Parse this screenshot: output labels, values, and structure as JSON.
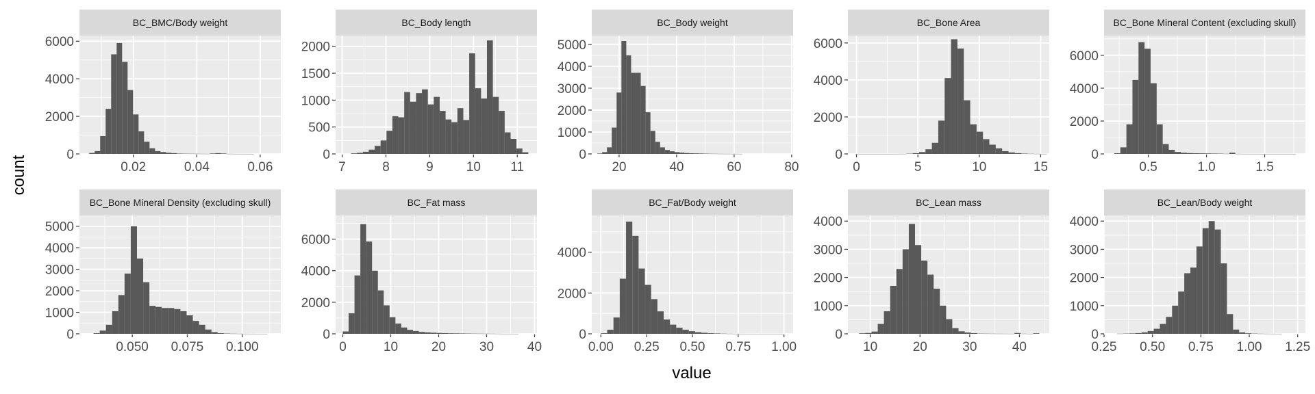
{
  "xlabel": "value",
  "ylabel": "count",
  "colors": {
    "panel_bg": "#ebebeb",
    "grid": "#ffffff",
    "strip_bg": "#d9d9d9",
    "bar": "#595959"
  },
  "chart_data": [
    {
      "type": "bar",
      "title": "BC_BMC/Body weight",
      "xlim": [
        0.003,
        0.0665
      ],
      "ylim": [
        0,
        6300
      ],
      "xticks": [
        0.02,
        0.04,
        0.06
      ],
      "xtick_labels": [
        "0.02",
        "0.04",
        "0.06"
      ],
      "yticks": [
        0,
        2000,
        4000,
        6000
      ],
      "ytick_labels": [
        "0",
        "2000",
        "4000",
        "6000"
      ],
      "bin_width": 0.00173,
      "bins_x": [
        0.00694,
        0.00867,
        0.0104,
        0.01213,
        0.01386,
        0.01559,
        0.01732,
        0.01905,
        0.02078,
        0.02251,
        0.02424,
        0.02597,
        0.0277,
        0.02943,
        0.03116,
        0.03289,
        0.03462,
        0.03635,
        0.03808,
        0.03981,
        0.04154,
        0.04327,
        0.045,
        0.04673,
        0.04846,
        0.05019,
        0.05192,
        0.05365,
        0.05538,
        0.05711
      ],
      "counts": [
        50,
        150,
        950,
        2400,
        5300,
        5900,
        4900,
        3400,
        2100,
        1200,
        650,
        300,
        150,
        100,
        60,
        40,
        20,
        15,
        12,
        10,
        8,
        6,
        25,
        40,
        25,
        5,
        3,
        2,
        2,
        1
      ]
    },
    {
      "type": "bar",
      "title": "BC_Body length",
      "xlim": [
        6.85,
        11.45
      ],
      "ylim": [
        0,
        2200
      ],
      "xticks": [
        7,
        8,
        9,
        10,
        11
      ],
      "xtick_labels": [
        "7",
        "8",
        "9",
        "10",
        "11"
      ],
      "yticks": [
        0,
        500,
        1000,
        1500,
        2000
      ],
      "ytick_labels": [
        "0",
        "500",
        "1000",
        "1500",
        "2000"
      ],
      "bin_width": 0.135,
      "bins_x": [
        7.27,
        7.405,
        7.54,
        7.675,
        7.81,
        7.945,
        8.08,
        8.215,
        8.35,
        8.485,
        8.62,
        8.755,
        8.89,
        9.025,
        9.16,
        9.295,
        9.43,
        9.565,
        9.7,
        9.835,
        9.97,
        10.105,
        10.24,
        10.375,
        10.51,
        10.645,
        10.78,
        10.915,
        11.05,
        11.185
      ],
      "counts": [
        10,
        20,
        40,
        80,
        150,
        250,
        430,
        700,
        680,
        1150,
        970,
        1130,
        1200,
        920,
        1060,
        800,
        640,
        590,
        850,
        630,
        1870,
        1220,
        1030,
        2110,
        1060,
        800,
        400,
        280,
        100,
        30
      ]
    },
    {
      "type": "bar",
      "title": "BC_Body weight",
      "xlim": [
        10.5,
        80.5
      ],
      "ylim": [
        0,
        5400
      ],
      "xticks": [
        20,
        40,
        60,
        80
      ],
      "xtick_labels": [
        "20",
        "40",
        "60",
        "80"
      ],
      "yticks": [
        0,
        1000,
        2000,
        3000,
        4000,
        5000
      ],
      "ytick_labels": [
        "0",
        "1000",
        "2000",
        "3000",
        "4000",
        "5000"
      ],
      "bin_width": 1.68,
      "bins_x": [
        13.26,
        14.94,
        16.62,
        18.3,
        19.98,
        21.66,
        23.34,
        25.02,
        26.7,
        28.38,
        30.06,
        31.74,
        33.42,
        35.1,
        36.78,
        38.46,
        40.14,
        41.82,
        43.5,
        45.18,
        46.86,
        48.54,
        50.22,
        51.9,
        53.58,
        55.26,
        56.94,
        58.62,
        60.3,
        61.98
      ],
      "counts": [
        20,
        80,
        300,
        1200,
        2800,
        5150,
        4500,
        3700,
        3700,
        3100,
        1900,
        1050,
        550,
        300,
        180,
        120,
        80,
        60,
        40,
        30,
        25,
        20,
        15,
        10,
        8,
        6,
        5,
        4,
        3,
        2
      ]
    },
    {
      "type": "bar",
      "title": "BC_Bone Area",
      "xlim": [
        -0.7,
        15.7
      ],
      "ylim": [
        0,
        6400
      ],
      "xticks": [
        0,
        5,
        10,
        15
      ],
      "xtick_labels": [
        "0",
        "5",
        "10",
        "15"
      ],
      "yticks": [
        0,
        2000,
        4000,
        6000
      ],
      "ytick_labels": [
        "0",
        "2000",
        "4000",
        "6000"
      ],
      "bin_width": 0.52,
      "bins_x": [
        0.16,
        0.68,
        1.2,
        1.72,
        2.24,
        2.76,
        3.28,
        3.8,
        4.32,
        4.84,
        5.36,
        5.88,
        6.4,
        6.92,
        7.44,
        7.96,
        8.48,
        9.0,
        9.52,
        10.04,
        10.56,
        11.08,
        11.6,
        12.12,
        12.64,
        13.16,
        13.68,
        14.2,
        14.72,
        15.24
      ],
      "counts": [
        2,
        1,
        1,
        1,
        1,
        1,
        2,
        3,
        15,
        40,
        100,
        250,
        600,
        1800,
        4100,
        6200,
        5700,
        2900,
        1600,
        1200,
        800,
        500,
        300,
        150,
        80,
        40,
        20,
        10,
        5,
        2
      ]
    },
    {
      "type": "bar",
      "title": "BC_Bone Mineral Content (excluding skull)",
      "xlim": [
        0.12,
        1.85
      ],
      "ylim": [
        0,
        7200
      ],
      "xticks": [
        0.5,
        1.0,
        1.5
      ],
      "xtick_labels": [
        "0.5",
        "1.0",
        "1.5"
      ],
      "yticks": [
        0,
        2000,
        4000,
        6000
      ],
      "ytick_labels": [
        "0",
        "2000",
        "4000",
        "6000"
      ],
      "bin_width": 0.052,
      "bins_x": [
        0.234,
        0.286,
        0.338,
        0.39,
        0.442,
        0.494,
        0.546,
        0.598,
        0.65,
        0.702,
        0.754,
        0.806,
        0.858,
        0.91,
        0.962,
        1.014,
        1.066,
        1.118,
        1.17,
        1.222,
        1.274,
        1.326,
        1.378,
        1.43,
        1.482,
        1.534,
        1.586,
        1.638,
        1.69,
        1.742
      ],
      "counts": [
        40,
        400,
        1800,
        4500,
        6800,
        6400,
        4300,
        1800,
        600,
        250,
        120,
        70,
        50,
        40,
        35,
        30,
        25,
        20,
        10,
        70,
        5,
        3,
        2,
        2,
        1,
        1,
        1,
        1,
        1,
        1
      ]
    },
    {
      "type": "bar",
      "title": "BC_Bone Mineral Density (excluding skull)",
      "xlim": [
        0.026,
        0.1175
      ],
      "ylim": [
        0,
        5500
      ],
      "xticks": [
        0.05,
        0.075,
        0.1
      ],
      "xtick_labels": [
        "0.050",
        "0.075",
        "0.100"
      ],
      "yticks": [
        0,
        1000,
        2000,
        3000,
        4000,
        5000
      ],
      "ytick_labels": [
        "0",
        "1000",
        "2000",
        "3000",
        "4000",
        "5000"
      ],
      "bin_width": 0.00282,
      "bins_x": [
        0.03381,
        0.03663,
        0.03945,
        0.04227,
        0.04509,
        0.04791,
        0.05073,
        0.05355,
        0.05637,
        0.05919,
        0.06201,
        0.06483,
        0.06765,
        0.07047,
        0.07329,
        0.07611,
        0.07893,
        0.08175,
        0.08457,
        0.08739,
        0.09021,
        0.09303,
        0.09585,
        0.09867,
        0.10149,
        0.10431,
        0.10713,
        0.10995
      ],
      "counts": [
        30,
        150,
        420,
        1050,
        1800,
        2800,
        5000,
        3500,
        2400,
        1300,
        1250,
        1200,
        1200,
        1150,
        1050,
        860,
        600,
        420,
        200,
        80,
        30,
        15,
        8,
        5,
        3,
        2,
        1,
        1
      ]
    },
    {
      "type": "bar",
      "title": "BC_Fat mass",
      "xlim": [
        -1.5,
        40.5
      ],
      "ylim": [
        0,
        7500
      ],
      "xticks": [
        0,
        10,
        20,
        30,
        40
      ],
      "xtick_labels": [
        "0",
        "10",
        "20",
        "30",
        "40"
      ],
      "yticks": [
        0,
        2000,
        4000,
        6000
      ],
      "ytick_labels": [
        "0",
        "2000",
        "4000",
        "6000"
      ],
      "bin_width": 1.22,
      "bins_x": [
        0.61,
        1.83,
        3.05,
        4.27,
        5.49,
        6.71,
        7.93,
        9.15,
        10.37,
        11.59,
        12.81,
        14.03,
        15.25,
        16.47,
        17.69,
        18.91,
        20.13,
        21.35,
        22.57,
        23.79,
        25.01,
        26.23,
        27.45,
        28.67,
        29.89,
        31.11,
        32.33,
        33.55,
        34.77,
        35.99
      ],
      "counts": [
        150,
        1300,
        3700,
        6950,
        5850,
        4000,
        2750,
        1800,
        1050,
        650,
        400,
        250,
        180,
        120,
        90,
        70,
        55,
        45,
        35,
        30,
        25,
        20,
        15,
        12,
        10,
        8,
        5,
        3,
        2,
        1
      ]
    },
    {
      "type": "bar",
      "title": "BC_Fat/Body weight",
      "xlim": [
        -0.05,
        1.05
      ],
      "ylim": [
        0,
        5800
      ],
      "xticks": [
        0,
        0.25,
        0.5,
        0.75,
        1.0
      ],
      "xtick_labels": [
        "0.00",
        "0.25",
        "0.50",
        "0.75",
        "1.00"
      ],
      "yticks": [
        0,
        2000,
        4000
      ],
      "ytick_labels": [
        "0",
        "2000",
        "4000"
      ],
      "bin_width": 0.0343,
      "bins_x": [
        0.0172,
        0.0515,
        0.0858,
        0.1201,
        0.1544,
        0.1887,
        0.223,
        0.2573,
        0.2916,
        0.3259,
        0.3602,
        0.3945,
        0.4288,
        0.4631,
        0.4974,
        0.5317,
        0.566,
        0.6003,
        0.6346,
        0.6689,
        0.7032,
        0.7375,
        0.7718,
        0.8061,
        0.8404,
        0.8747,
        0.909,
        0.9433,
        0.9776
      ],
      "counts": [
        30,
        200,
        800,
        2700,
        5500,
        4800,
        3200,
        2400,
        1700,
        1100,
        700,
        450,
        300,
        200,
        130,
        80,
        50,
        30,
        20,
        10,
        5,
        3,
        2,
        1,
        1,
        1,
        1,
        1,
        1
      ]
    },
    {
      "type": "bar",
      "title": "BC_Lean mass",
      "xlim": [
        5.5,
        46
      ],
      "ylim": [
        0,
        4200
      ],
      "xticks": [
        10,
        20,
        30,
        40
      ],
      "xtick_labels": [
        "10",
        "20",
        "30",
        "40"
      ],
      "yticks": [
        0,
        1000,
        2000,
        3000,
        4000
      ],
      "ytick_labels": [
        "0",
        "1000",
        "2000",
        "3000",
        "4000"
      ],
      "bin_width": 1.25,
      "bins_x": [
        8.375,
        9.625,
        10.875,
        12.125,
        13.375,
        14.625,
        15.875,
        17.125,
        18.375,
        19.625,
        20.875,
        22.125,
        23.375,
        24.625,
        25.875,
        27.125,
        28.375,
        29.625,
        30.875,
        32.125,
        33.375,
        34.625,
        35.875,
        37.125,
        38.375,
        39.625,
        40.875,
        42.125,
        43.375
      ],
      "counts": [
        20,
        30,
        80,
        350,
        800,
        1700,
        2300,
        3000,
        3900,
        3150,
        2600,
        2100,
        1600,
        1000,
        520,
        200,
        90,
        45,
        25,
        10,
        8,
        6,
        5,
        4,
        3,
        30,
        5,
        2,
        20
      ]
    },
    {
      "type": "bar",
      "title": "BC_Lean/Body weight",
      "xlim": [
        0.25,
        1.29
      ],
      "ylim": [
        0,
        4200
      ],
      "xticks": [
        0.25,
        0.5,
        0.75,
        1.0,
        1.25
      ],
      "xtick_labels": [
        "0.25",
        "0.50",
        "0.75",
        "1.00",
        "1.25"
      ],
      "yticks": [
        0,
        1000,
        2000,
        3000,
        4000
      ],
      "ytick_labels": [
        "0",
        "1000",
        "2000",
        "3000",
        "4000"
      ],
      "bin_width": 0.0315,
      "bins_x": [
        0.3335,
        0.365,
        0.3965,
        0.428,
        0.4595,
        0.491,
        0.5225,
        0.554,
        0.5855,
        0.617,
        0.6485,
        0.68,
        0.7115,
        0.743,
        0.7745,
        0.806,
        0.8375,
        0.869,
        0.9005,
        0.932,
        0.9635,
        0.995,
        1.0265,
        1.058,
        1.0895,
        1.121,
        1.1525
      ],
      "counts": [
        5,
        10,
        15,
        25,
        50,
        100,
        180,
        350,
        600,
        1000,
        1500,
        2150,
        2350,
        3100,
        3750,
        4000,
        3700,
        2500,
        700,
        150,
        50,
        20,
        10,
        5,
        3,
        2,
        1
      ]
    }
  ]
}
